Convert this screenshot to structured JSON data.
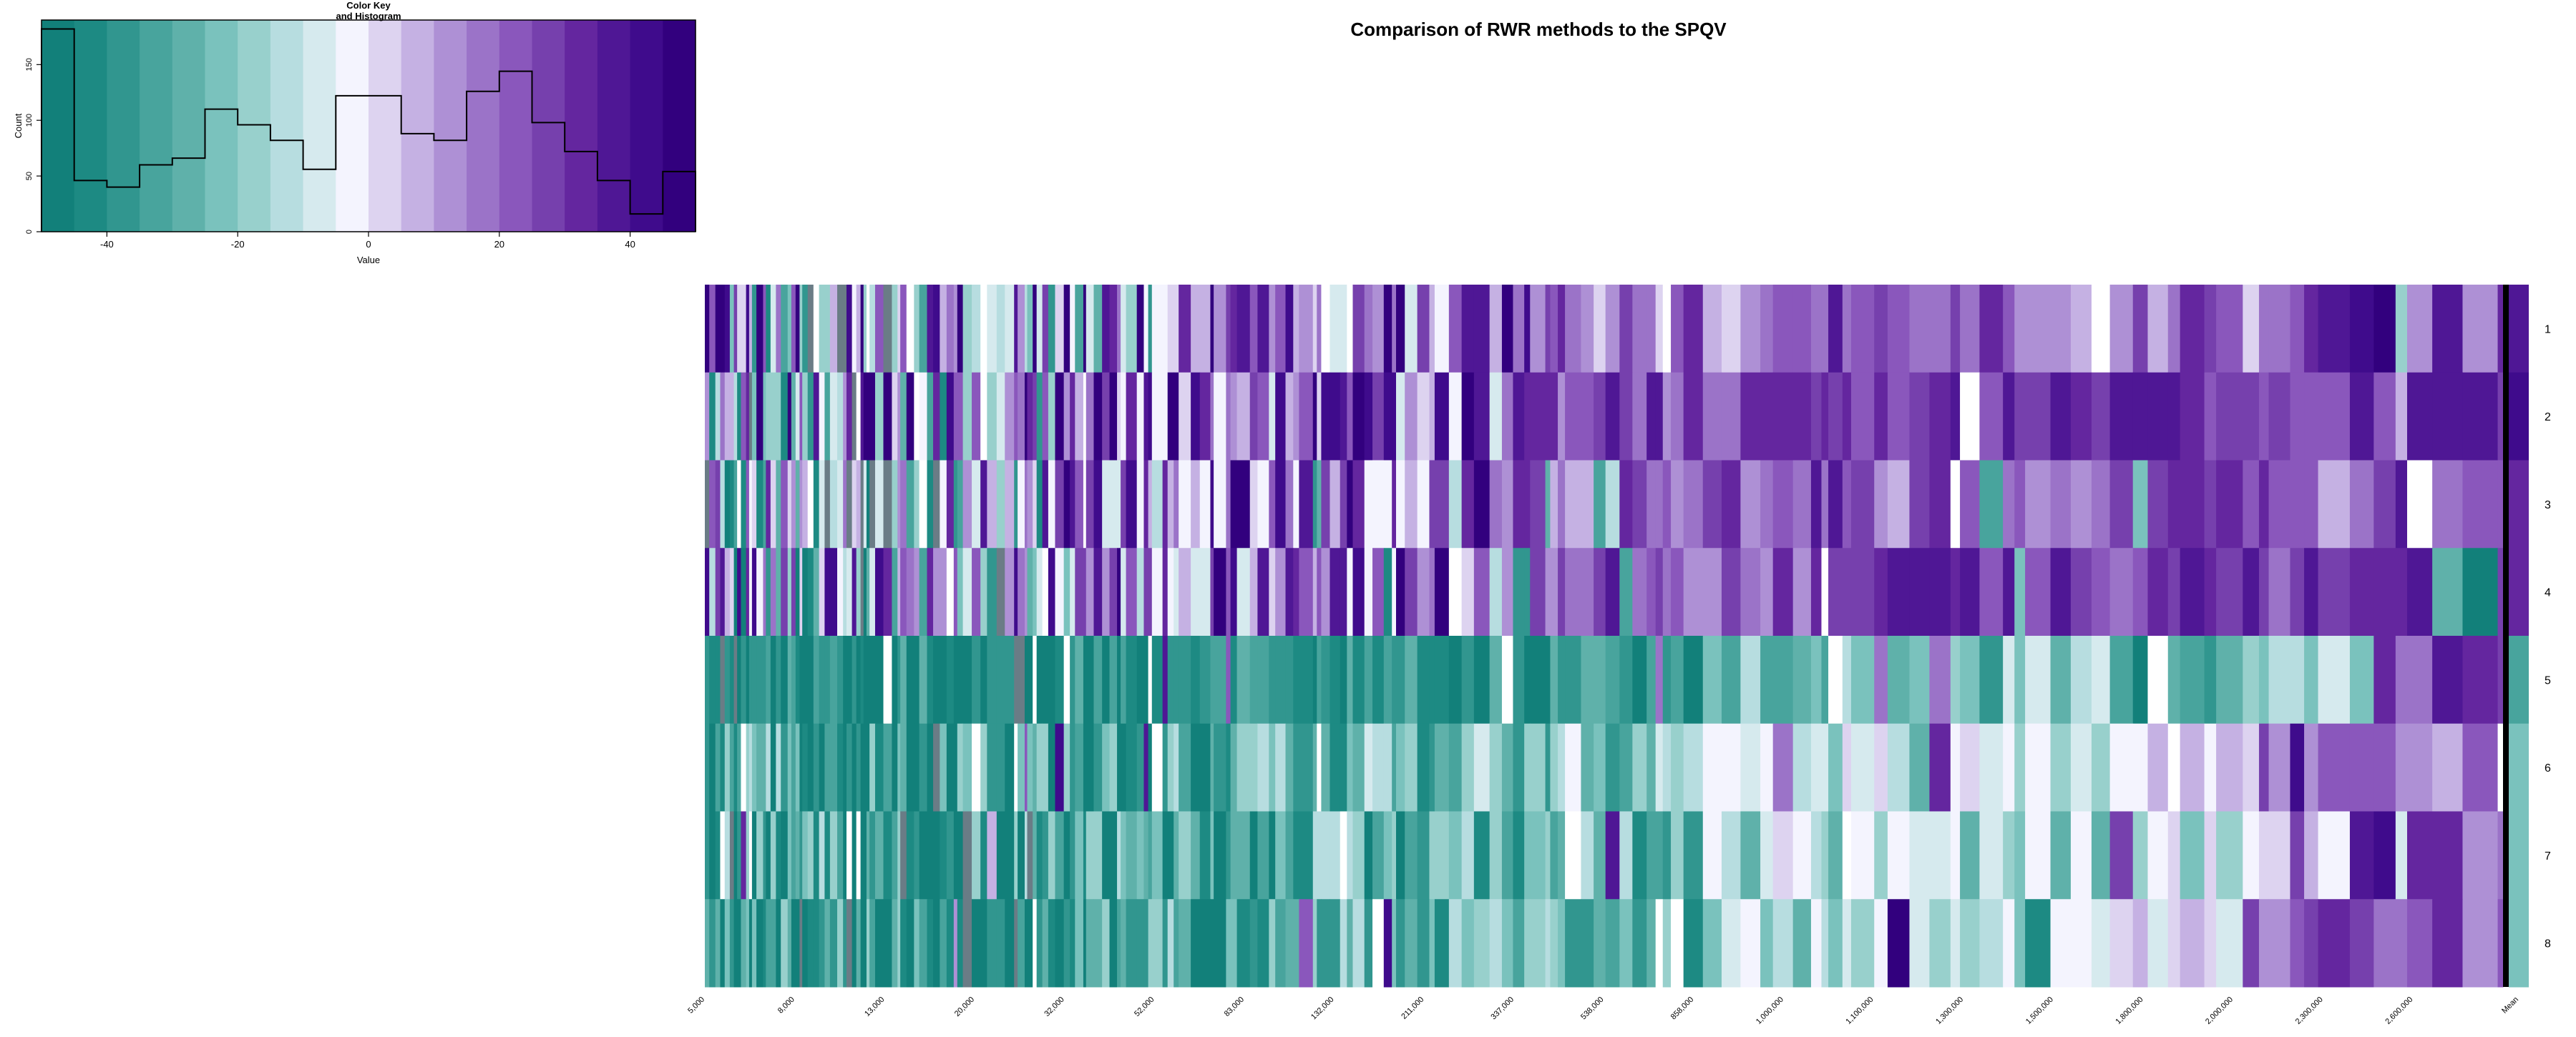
{
  "title": "Comparison of RWR methods to the SPQV",
  "color_key": {
    "title_line1": "Color Key",
    "title_line2": "and Histogram",
    "xlabel": "Value",
    "ylabel": "Count",
    "x_ticks": [
      "-40",
      "-20",
      "0",
      "20",
      "40"
    ],
    "x_tick_values": [
      -40,
      -20,
      0,
      20,
      40
    ],
    "y_ticks": [
      "0",
      "50",
      "100",
      "150"
    ],
    "y_tick_values": [
      0,
      50,
      100,
      150
    ],
    "xlim": [
      -50,
      50
    ],
    "ylim": [
      0,
      190
    ],
    "palette": [
      "#12807a",
      "#1d8a83",
      "#31968f",
      "#48a49d",
      "#5fb1aa",
      "#7ac2bd",
      "#98d0cc",
      "#b7dde0",
      "#d6eaee",
      "#f4f4fe",
      "#ddd3f0",
      "#c5b1e3",
      "#ae90d5",
      "#9b73c8",
      "#8a57bc",
      "#7640ad",
      "#64269f",
      "#4f1795",
      "#3f0b8c",
      "#32007e"
    ]
  },
  "chart_data": {
    "type": "heatmap",
    "title": "Comparison of RWR methods to the SPQV",
    "rows": [
      "1",
      "2",
      "3",
      "4",
      "5",
      "6",
      "7",
      "8"
    ],
    "column_tick_labels": [
      "5,000",
      "8,000",
      "13,000",
      "20,000",
      "32,000",
      "52,000",
      "83,000",
      "132,000",
      "211,000",
      "337,000",
      "538,000",
      "858,000",
      "1,000,000",
      "1,100,000",
      "1,300,000",
      "1,500,000",
      "1,800,000",
      "2,000,000",
      "2,300,000",
      "2,600,000",
      "Mean"
    ],
    "column_tick_positions": [
      0.0,
      0.05,
      0.1,
      0.15,
      0.2,
      0.25,
      0.3,
      0.35,
      0.4,
      0.45,
      0.5,
      0.55,
      0.6,
      0.65,
      0.7,
      0.75,
      0.8,
      0.85,
      0.9,
      0.95,
      1.0
    ],
    "value_range": [
      -50,
      50
    ],
    "histogram": {
      "bin_edges": [
        -50,
        -45,
        -40,
        -35,
        -30,
        -25,
        -20,
        -15,
        -10,
        -5,
        5,
        10,
        15,
        20,
        25,
        30,
        35,
        40,
        45,
        50
      ],
      "counts": [
        182,
        46,
        40,
        60,
        66,
        110,
        96,
        82,
        56,
        122,
        88,
        82,
        126,
        144,
        98,
        72,
        46,
        16,
        54
      ]
    },
    "row_profiles": [
      {
        "row": "1",
        "mean": 35,
        "bands": [
          {
            "until": 0.25,
            "mean": 10,
            "jitter": 50
          },
          {
            "until": 0.45,
            "mean": 22,
            "jitter": 32
          },
          {
            "until": 0.7,
            "mean": 20,
            "jitter": 16
          },
          {
            "until": 0.9,
            "mean": 18,
            "jitter": 14
          },
          {
            "until": 1.0,
            "mean": 28,
            "jitter": 22
          }
        ]
      },
      {
        "row": "2",
        "mean": 40,
        "bands": [
          {
            "until": 0.2,
            "mean": 5,
            "jitter": 50
          },
          {
            "until": 0.45,
            "mean": 22,
            "jitter": 30
          },
          {
            "until": 0.7,
            "mean": 27,
            "jitter": 14
          },
          {
            "until": 1.0,
            "mean": 30,
            "jitter": 10
          }
        ]
      },
      {
        "row": "3",
        "mean": 30,
        "bands": [
          {
            "until": 0.2,
            "mean": -5,
            "jitter": 48
          },
          {
            "until": 0.45,
            "mean": 18,
            "jitter": 32
          },
          {
            "until": 0.7,
            "mean": 22,
            "jitter": 16
          },
          {
            "until": 1.0,
            "mean": 24,
            "jitter": 12
          }
        ]
      },
      {
        "row": "4",
        "mean": 30,
        "bands": [
          {
            "until": 0.2,
            "mean": -5,
            "jitter": 48
          },
          {
            "until": 0.45,
            "mean": 18,
            "jitter": 32
          },
          {
            "until": 0.7,
            "mean": 25,
            "jitter": 14
          },
          {
            "until": 1.0,
            "mean": 28,
            "jitter": 10
          }
        ]
      },
      {
        "row": "5",
        "mean": -35,
        "bands": [
          {
            "until": 0.25,
            "mean": -42,
            "jitter": 14
          },
          {
            "until": 0.55,
            "mean": -38,
            "jitter": 12
          },
          {
            "until": 0.85,
            "mean": -22,
            "jitter": 16
          },
          {
            "until": 0.93,
            "mean": -10,
            "jitter": 16
          },
          {
            "until": 1.0,
            "mean": 35,
            "jitter": 20
          }
        ]
      },
      {
        "row": "6",
        "mean": -25,
        "bands": [
          {
            "until": 0.3,
            "mean": -35,
            "jitter": 22
          },
          {
            "until": 0.55,
            "mean": -25,
            "jitter": 18
          },
          {
            "until": 0.78,
            "mean": -12,
            "jitter": 14
          },
          {
            "until": 0.86,
            "mean": 0,
            "jitter": 10
          },
          {
            "until": 1.0,
            "mean": 20,
            "jitter": 12
          }
        ]
      },
      {
        "row": "7",
        "mean": -25,
        "bands": [
          {
            "until": 0.3,
            "mean": -38,
            "jitter": 24
          },
          {
            "until": 0.55,
            "mean": -28,
            "jitter": 18
          },
          {
            "until": 0.85,
            "mean": -14,
            "jitter": 16
          },
          {
            "until": 0.92,
            "mean": 0,
            "jitter": 10
          },
          {
            "until": 1.0,
            "mean": 28,
            "jitter": 16
          }
        ]
      },
      {
        "row": "8",
        "mean": -25,
        "bands": [
          {
            "until": 0.3,
            "mean": -38,
            "jitter": 22
          },
          {
            "until": 0.55,
            "mean": -26,
            "jitter": 16
          },
          {
            "until": 0.78,
            "mean": -15,
            "jitter": 12
          },
          {
            "until": 0.85,
            "mean": 0,
            "jitter": 10
          },
          {
            "until": 1.0,
            "mean": 22,
            "jitter": 10
          }
        ]
      }
    ]
  }
}
